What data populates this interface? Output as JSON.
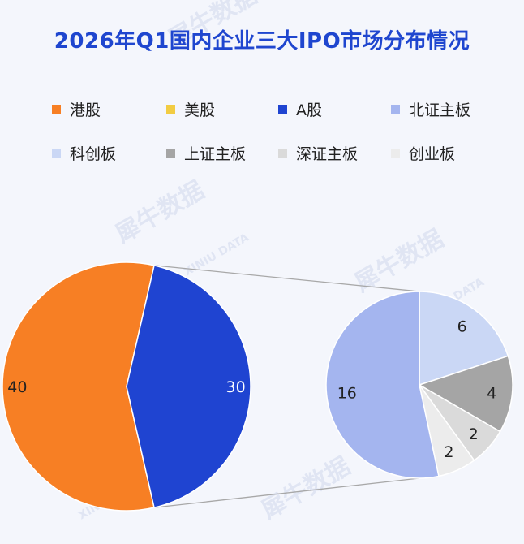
{
  "title": "2026年Q1国内企业三大IPO市场分布情况",
  "watermark": {
    "brand": "犀牛数据",
    "sub": "XINIU DATA"
  },
  "legend": [
    {
      "label": "港股",
      "color": "#f77f24"
    },
    {
      "label": "美股",
      "color": "#f2cc42"
    },
    {
      "label": "A股",
      "color": "#1f44d1"
    },
    {
      "label": "北证主板",
      "color": "#a4b5ef"
    },
    {
      "label": "科创板",
      "color": "#cad7f5"
    },
    {
      "label": "上证主板",
      "color": "#a5a5a5"
    },
    {
      "label": "深证主板",
      "color": "#dadada"
    },
    {
      "label": "创业板",
      "color": "#ececec"
    }
  ],
  "chart_data": [
    {
      "type": "pie",
      "title": "",
      "categories": [
        "港股",
        "美股",
        "A股"
      ],
      "values": [
        40,
        0,
        30
      ],
      "colors": [
        "#f77f24",
        "#f2cc42",
        "#1f44d1"
      ],
      "data_labels": [
        "40",
        "",
        "30"
      ],
      "exploded_category": "A股"
    },
    {
      "type": "pie",
      "title": "",
      "categories": [
        "科创板",
        "上证主板",
        "深证主板",
        "创业板",
        "北证主板"
      ],
      "values": [
        6,
        4,
        2,
        2,
        16
      ],
      "colors": [
        "#cad7f5",
        "#a5a5a5",
        "#dadada",
        "#ececec",
        "#a4b5ef"
      ],
      "data_labels": [
        "6",
        "4",
        "2",
        "2",
        "16"
      ],
      "breakdown_of": "A股"
    }
  ]
}
